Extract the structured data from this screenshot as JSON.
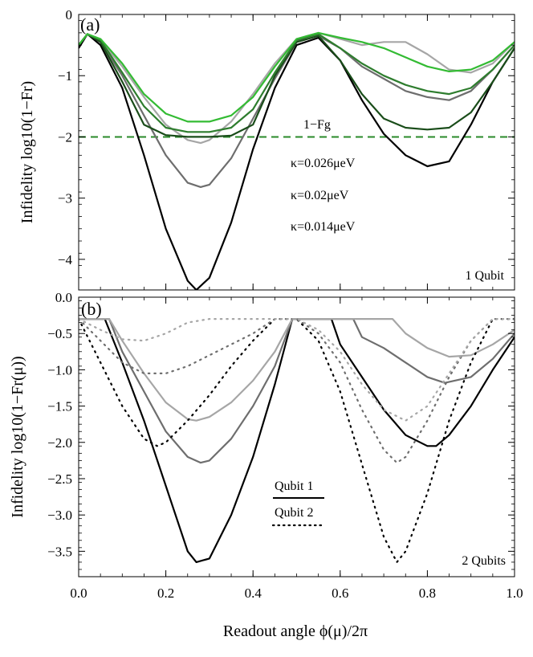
{
  "chart_data": [
    {
      "type": "line",
      "panel_label": "(a)",
      "ylabel": "Infidelity log10(1−Fr)",
      "xlim": [
        0,
        1
      ],
      "ylim": [
        -4.5,
        0
      ],
      "yticks": [
        0,
        -1,
        -2,
        -3,
        -4
      ],
      "ytick_labels": [
        "0",
        "−1",
        "−2",
        "−3",
        "−4"
      ],
      "corner_text": "1 Qubit",
      "reference_line": {
        "label": "1−Fg",
        "y": -2,
        "style": "dashed",
        "color": "#2a8a2a"
      },
      "annotations": [
        {
          "text": "κ=0.026μeV",
          "color": "#a6a6a6"
        },
        {
          "text": "κ=0.02μeV",
          "color": "#6e6e6e"
        },
        {
          "text": "κ=0.014μeV",
          "color": "#000000"
        }
      ],
      "series": [
        {
          "color": "#000000",
          "x": [
            0,
            0.02,
            0.05,
            0.1,
            0.15,
            0.2,
            0.25,
            0.27,
            0.3,
            0.35,
            0.4,
            0.45,
            0.5,
            0.55,
            0.6,
            0.65,
            0.7,
            0.75,
            0.8,
            0.85,
            0.9,
            0.95,
            1.0
          ],
          "values": [
            -0.55,
            -0.32,
            -0.5,
            -1.2,
            -2.3,
            -3.5,
            -4.35,
            -4.5,
            -4.3,
            -3.4,
            -2.2,
            -1.2,
            -0.5,
            -0.38,
            -0.75,
            -1.4,
            -1.95,
            -2.3,
            -2.48,
            -2.4,
            -1.8,
            -1.1,
            -0.55
          ]
        },
        {
          "color": "#6e6e6e",
          "x": [
            0,
            0.02,
            0.05,
            0.1,
            0.15,
            0.2,
            0.25,
            0.28,
            0.3,
            0.35,
            0.4,
            0.45,
            0.5,
            0.55,
            0.6,
            0.65,
            0.7,
            0.75,
            0.8,
            0.85,
            0.9,
            0.95,
            1.0
          ],
          "values": [
            -0.5,
            -0.32,
            -0.45,
            -1.0,
            -1.65,
            -2.3,
            -2.75,
            -2.82,
            -2.78,
            -2.35,
            -1.7,
            -1.05,
            -0.45,
            -0.35,
            -0.55,
            -0.85,
            -1.05,
            -1.25,
            -1.35,
            -1.4,
            -1.25,
            -0.9,
            -0.5
          ]
        },
        {
          "color": "#a6a6a6",
          "x": [
            0,
            0.02,
            0.05,
            0.1,
            0.15,
            0.2,
            0.25,
            0.28,
            0.3,
            0.35,
            0.4,
            0.45,
            0.5,
            0.55,
            0.6,
            0.65,
            0.7,
            0.75,
            0.8,
            0.85,
            0.9,
            0.95,
            1.0
          ],
          "values": [
            -0.5,
            -0.32,
            -0.42,
            -0.85,
            -1.35,
            -1.8,
            -2.05,
            -2.1,
            -2.05,
            -1.75,
            -1.3,
            -0.8,
            -0.4,
            -0.3,
            -0.4,
            -0.5,
            -0.45,
            -0.45,
            -0.65,
            -0.9,
            -0.95,
            -0.8,
            -0.45
          ]
        },
        {
          "color": "#1a4d1a",
          "x": [
            0,
            0.02,
            0.05,
            0.1,
            0.15,
            0.2,
            0.25,
            0.3,
            0.35,
            0.4,
            0.45,
            0.5,
            0.55,
            0.6,
            0.65,
            0.7,
            0.75,
            0.8,
            0.85,
            0.9,
            0.95,
            1.0
          ],
          "values": [
            -0.5,
            -0.32,
            -0.45,
            -1.1,
            -1.8,
            -1.97,
            -2.0,
            -2.0,
            -1.98,
            -1.8,
            -1.0,
            -0.45,
            -0.35,
            -0.75,
            -1.3,
            -1.7,
            -1.85,
            -1.88,
            -1.85,
            -1.6,
            -1.1,
            -0.55
          ]
        },
        {
          "color": "#2e7d2e",
          "x": [
            0,
            0.02,
            0.05,
            0.1,
            0.15,
            0.2,
            0.25,
            0.3,
            0.35,
            0.4,
            0.45,
            0.5,
            0.55,
            0.6,
            0.65,
            0.7,
            0.75,
            0.8,
            0.85,
            0.9,
            0.95,
            1.0
          ],
          "values": [
            -0.5,
            -0.32,
            -0.42,
            -0.95,
            -1.5,
            -1.85,
            -1.92,
            -1.92,
            -1.85,
            -1.55,
            -0.95,
            -0.42,
            -0.32,
            -0.55,
            -0.8,
            -1.0,
            -1.15,
            -1.25,
            -1.3,
            -1.2,
            -0.9,
            -0.5
          ]
        },
        {
          "color": "#33bb33",
          "x": [
            0,
            0.02,
            0.05,
            0.1,
            0.15,
            0.2,
            0.25,
            0.3,
            0.35,
            0.4,
            0.45,
            0.5,
            0.55,
            0.6,
            0.65,
            0.7,
            0.75,
            0.8,
            0.85,
            0.9,
            0.95,
            1.0
          ],
          "values": [
            -0.5,
            -0.32,
            -0.4,
            -0.8,
            -1.3,
            -1.62,
            -1.75,
            -1.75,
            -1.65,
            -1.35,
            -0.85,
            -0.4,
            -0.3,
            -0.38,
            -0.45,
            -0.55,
            -0.7,
            -0.85,
            -0.93,
            -0.9,
            -0.75,
            -0.45
          ]
        }
      ]
    },
    {
      "type": "line",
      "panel_label": "(b)",
      "xlabel": "Readout angle ϕ(μ)/2π",
      "ylabel": "Infidelity log10(1−Fr(μ))",
      "xlim": [
        0,
        1
      ],
      "ylim": [
        -3.85,
        0
      ],
      "xticks": [
        0,
        0.2,
        0.4,
        0.6,
        0.8,
        1.0
      ],
      "xtick_labels": [
        "0.0",
        "0.2",
        "0.4",
        "0.6",
        "0.8",
        "1.0"
      ],
      "yticks": [
        0,
        -0.5,
        -1.0,
        -1.5,
        -2.0,
        -2.5,
        -3.0,
        -3.5
      ],
      "ytick_labels": [
        "0.0",
        "−0.5",
        "−1.0",
        "−1.5",
        "−2.0",
        "−2.5",
        "−3.0",
        "−3.5"
      ],
      "corner_text": "2 Qubits",
      "legend": [
        {
          "label": "Qubit 1",
          "style": "solid"
        },
        {
          "label": "Qubit 2",
          "style": "dotted"
        }
      ],
      "series": [
        {
          "group": "Qubit 1",
          "style": "solid",
          "color": "#000000",
          "x": [
            0,
            0.06,
            0.1,
            0.15,
            0.2,
            0.25,
            0.27,
            0.3,
            0.35,
            0.4,
            0.45,
            0.49,
            0.5,
            0.55,
            0.58,
            0.6,
            0.65,
            0.7,
            0.75,
            0.8,
            0.82,
            0.85,
            0.9,
            0.95,
            1.0
          ],
          "values": [
            -0.3,
            -0.3,
            -0.9,
            -1.7,
            -2.6,
            -3.5,
            -3.65,
            -3.6,
            -3.0,
            -2.2,
            -1.2,
            -0.3,
            -0.3,
            -0.3,
            -0.3,
            -0.65,
            -1.1,
            -1.55,
            -1.9,
            -2.05,
            -2.05,
            -1.9,
            -1.5,
            -1.0,
            -0.55
          ]
        },
        {
          "group": "Qubit 1",
          "style": "solid",
          "color": "#6e6e6e",
          "x": [
            0,
            0.07,
            0.1,
            0.15,
            0.2,
            0.25,
            0.28,
            0.3,
            0.35,
            0.4,
            0.45,
            0.49,
            0.5,
            0.55,
            0.6,
            0.63,
            0.65,
            0.7,
            0.75,
            0.8,
            0.84,
            0.9,
            0.95,
            1.0
          ],
          "values": [
            -0.3,
            -0.3,
            -0.75,
            -1.3,
            -1.85,
            -2.2,
            -2.28,
            -2.25,
            -1.95,
            -1.5,
            -0.95,
            -0.3,
            -0.3,
            -0.3,
            -0.3,
            -0.3,
            -0.55,
            -0.7,
            -0.9,
            -1.1,
            -1.18,
            -1.1,
            -0.85,
            -0.5
          ]
        },
        {
          "group": "Qubit 1",
          "style": "solid",
          "color": "#a6a6a6",
          "x": [
            0,
            0.07,
            0.1,
            0.15,
            0.2,
            0.25,
            0.27,
            0.3,
            0.35,
            0.4,
            0.45,
            0.49,
            0.5,
            0.55,
            0.6,
            0.65,
            0.7,
            0.72,
            0.75,
            0.8,
            0.85,
            0.9,
            0.95,
            1.0
          ],
          "values": [
            -0.3,
            -0.3,
            -0.6,
            -1.05,
            -1.45,
            -1.68,
            -1.7,
            -1.65,
            -1.45,
            -1.15,
            -0.75,
            -0.3,
            -0.3,
            -0.3,
            -0.3,
            -0.3,
            -0.3,
            -0.3,
            -0.5,
            -0.7,
            -0.82,
            -0.8,
            -0.65,
            -0.45
          ]
        },
        {
          "group": "Qubit 2",
          "style": "dotted",
          "color": "#000000",
          "x": [
            0,
            0.05,
            0.1,
            0.15,
            0.18,
            0.2,
            0.25,
            0.3,
            0.35,
            0.4,
            0.45,
            0.5,
            0.55,
            0.6,
            0.65,
            0.7,
            0.73,
            0.75,
            0.8,
            0.85,
            0.9,
            0.95,
            1.0
          ],
          "values": [
            -0.3,
            -0.9,
            -1.5,
            -1.95,
            -2.05,
            -2.0,
            -1.7,
            -1.35,
            -0.95,
            -0.6,
            -0.3,
            -0.3,
            -0.6,
            -1.3,
            -2.3,
            -3.3,
            -3.65,
            -3.5,
            -2.7,
            -1.7,
            -0.9,
            -0.3,
            -0.3
          ]
        },
        {
          "group": "Qubit 2",
          "style": "dotted",
          "color": "#6e6e6e",
          "x": [
            0,
            0.05,
            0.1,
            0.15,
            0.2,
            0.25,
            0.3,
            0.35,
            0.4,
            0.45,
            0.5,
            0.55,
            0.6,
            0.65,
            0.7,
            0.73,
            0.75,
            0.8,
            0.85,
            0.9,
            0.95,
            1.0
          ],
          "values": [
            -0.3,
            -0.6,
            -0.9,
            -1.05,
            -1.05,
            -0.95,
            -0.8,
            -0.65,
            -0.5,
            -0.3,
            -0.3,
            -0.5,
            -0.9,
            -1.55,
            -2.1,
            -2.28,
            -2.2,
            -1.7,
            -1.1,
            -0.6,
            -0.3,
            -0.3
          ]
        },
        {
          "group": "Qubit 2",
          "style": "dotted",
          "color": "#a6a6a6",
          "x": [
            0,
            0.05,
            0.1,
            0.15,
            0.2,
            0.25,
            0.3,
            0.35,
            0.4,
            0.45,
            0.5,
            0.55,
            0.6,
            0.65,
            0.7,
            0.75,
            0.8,
            0.85,
            0.9,
            0.95,
            1.0
          ],
          "values": [
            -0.3,
            -0.45,
            -0.58,
            -0.6,
            -0.5,
            -0.35,
            -0.3,
            -0.3,
            -0.3,
            -0.3,
            -0.3,
            -0.45,
            -0.75,
            -1.2,
            -1.55,
            -1.7,
            -1.5,
            -1.05,
            -0.6,
            -0.3,
            -0.3
          ]
        }
      ]
    }
  ]
}
